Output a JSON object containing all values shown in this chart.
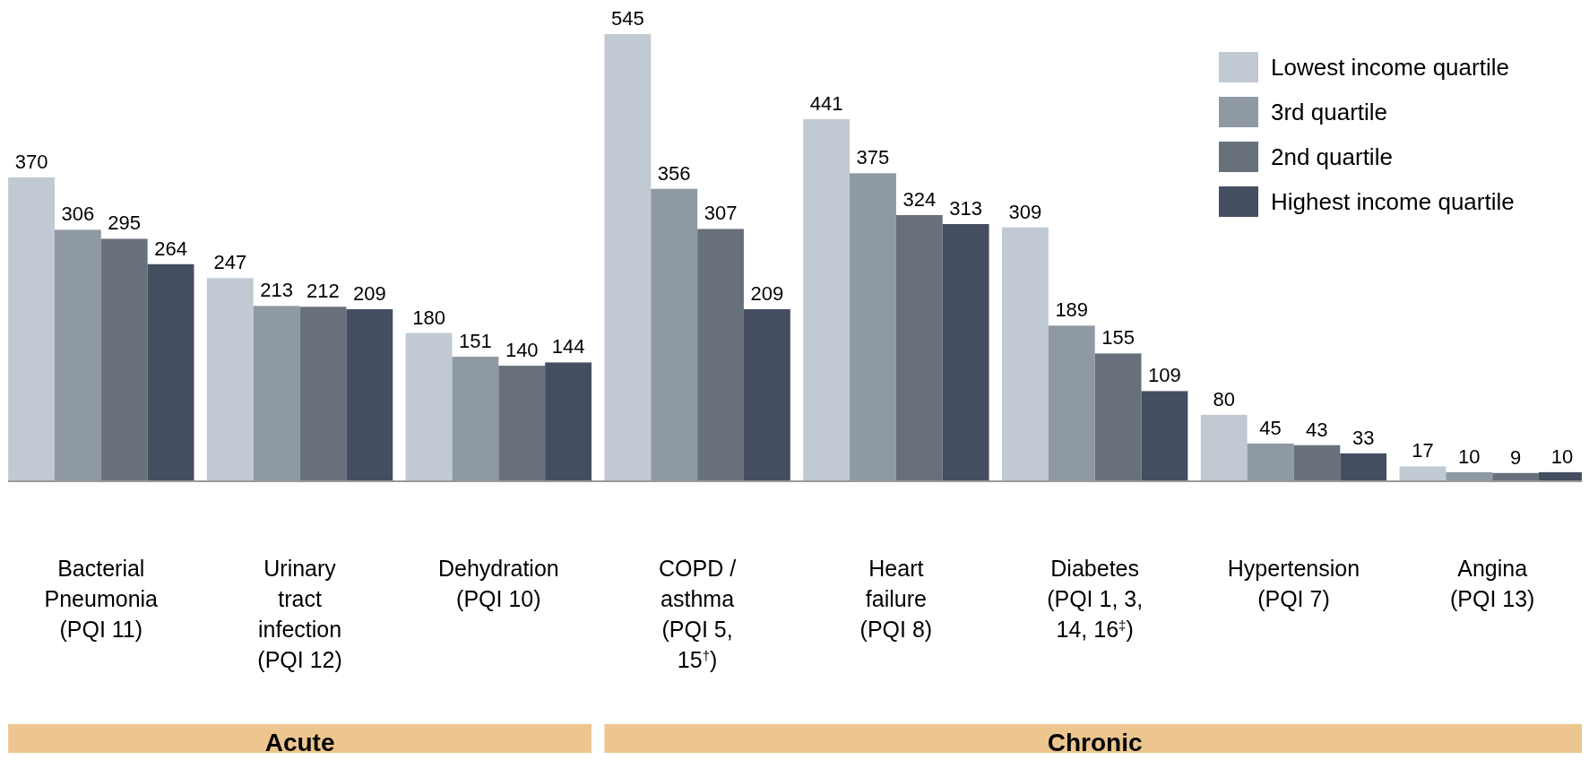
{
  "chart_data": {
    "type": "bar",
    "categories": [
      "Bacterial\nPneumonia\n(PQI 11)",
      "Urinary\ntract\ninfection\n(PQI 12)",
      "Dehydration\n(PQI 10)",
      "COPD /\nasthma\n(PQI 5,\n15$^{†}$)",
      "Heart\nfailure\n(PQI 8)",
      "Diabetes\n(PQI 1, 3,\n14, 16$^{‡}$)",
      "Hypertension\n(PQI 7)",
      "Angina\n(PQI 13)"
    ],
    "series": [
      {
        "name": "Lowest income quartile",
        "color": "#c1c9d2",
        "values": [
          370,
          247,
          180,
          545,
          441,
          309,
          80,
          17
        ]
      },
      {
        "name": "3rd quartile",
        "color": "#8e99a3",
        "values": [
          306,
          213,
          151,
          356,
          375,
          189,
          45,
          10
        ]
      },
      {
        "name": "2nd quartile",
        "color": "#68717b",
        "values": [
          295,
          212,
          140,
          307,
          324,
          155,
          43,
          9
        ]
      },
      {
        "name": "Highest income quartile",
        "color": "#454e60",
        "values": [
          264,
          209,
          144,
          209,
          313,
          109,
          33,
          10
        ]
      }
    ],
    "data_labels": true,
    "legend": "top right",
    "annotations": [
      "Acute",
      "Chronic"
    ]
  }
}
